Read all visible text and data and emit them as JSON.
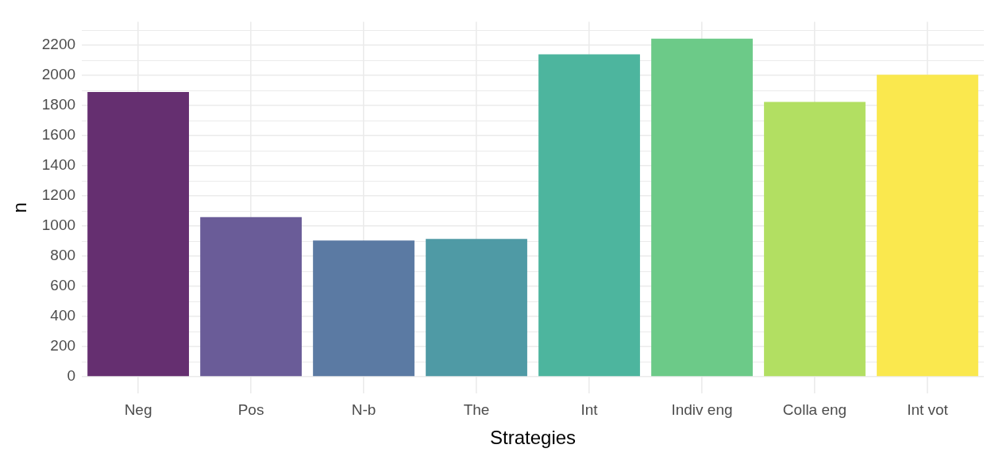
{
  "chart_data": {
    "type": "bar",
    "xlabel": "Strategies",
    "ylabel": "n",
    "categories": [
      "Neg",
      "Pos",
      "N-b",
      "The",
      "Int",
      "Indiv eng",
      "Colla eng",
      "Int vot"
    ],
    "values": [
      1890,
      1060,
      905,
      915,
      2140,
      2245,
      1825,
      2005
    ],
    "colors": [
      "#652f70",
      "#6a5c98",
      "#5b7aa3",
      "#4f9aa5",
      "#4db59e",
      "#6cca88",
      "#b2df62",
      "#fae84e"
    ],
    "ylim": [
      -112,
      2357
    ],
    "yticks": [
      0,
      {
        "value": 100,
        "label": null
      },
      200,
      {
        "value": 300,
        "label": null
      },
      400,
      {
        "value": 500,
        "label": null
      },
      600,
      {
        "value": 700,
        "label": null
      },
      800,
      {
        "value": 900,
        "label": null
      },
      1000,
      {
        "value": 1100,
        "label": null
      },
      1200,
      {
        "value": 1300,
        "label": null
      },
      1400,
      {
        "value": 1500,
        "label": null
      },
      1600,
      {
        "value": 1700,
        "label": null
      },
      1800,
      {
        "value": 1900,
        "label": null
      },
      2000,
      {
        "value": 2100,
        "label": null
      },
      2200,
      {
        "value": 2300,
        "label": null
      }
    ],
    "grid": true,
    "legend": false
  }
}
